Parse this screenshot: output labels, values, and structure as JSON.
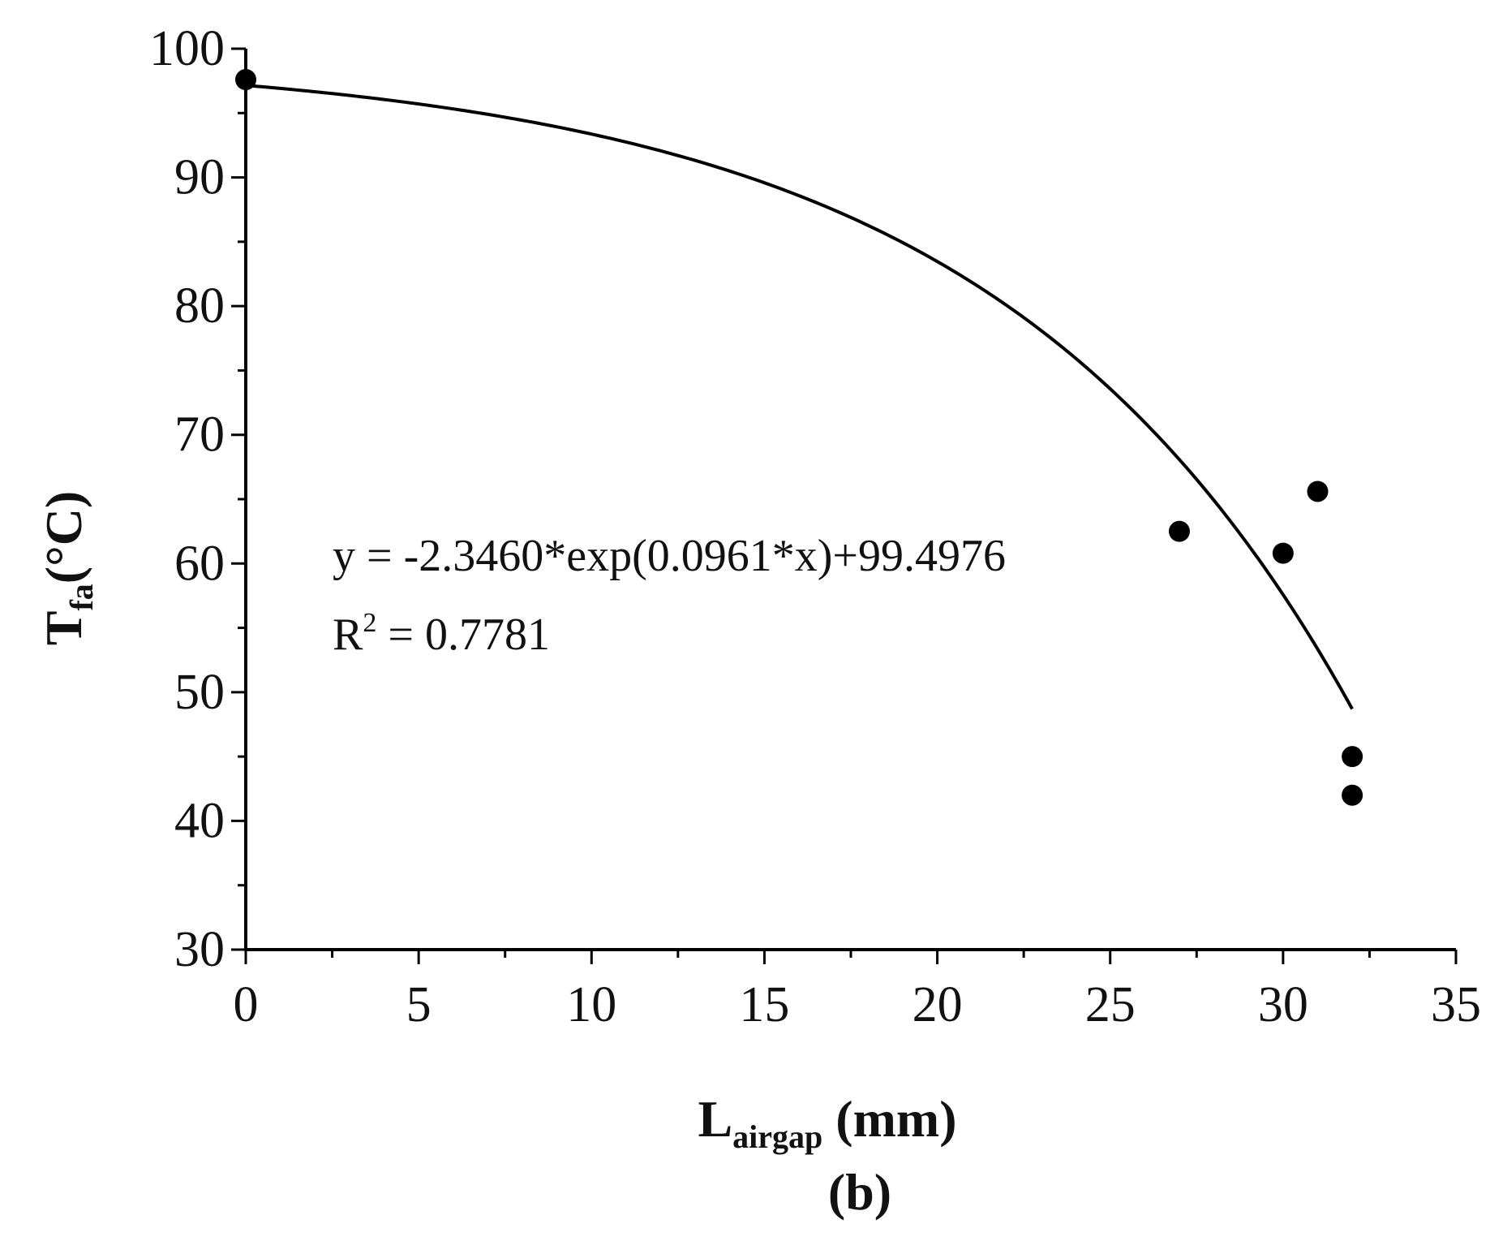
{
  "chart_data": {
    "type": "scatter",
    "xlabel": {
      "main": "L",
      "sub": "airgap",
      "tail": " (mm)"
    },
    "ylabel": {
      "main": "T",
      "sub": "fa",
      "tail": "(°C)"
    },
    "caption": "(b)",
    "xlim": [
      0,
      35
    ],
    "ylim": [
      30,
      100
    ],
    "x_ticks": [
      0,
      5,
      10,
      15,
      20,
      25,
      30,
      35
    ],
    "y_ticks": [
      30,
      40,
      50,
      60,
      70,
      80,
      90,
      100
    ],
    "grid": false,
    "points": [
      {
        "x": 0,
        "y": 97.6
      },
      {
        "x": 27,
        "y": 62.5
      },
      {
        "x": 30,
        "y": 60.8
      },
      {
        "x": 31,
        "y": 65.6
      },
      {
        "x": 32,
        "y": 45.0
      },
      {
        "x": 32,
        "y": 42.0
      }
    ],
    "fit": {
      "a": -2.346,
      "b": 0.0961,
      "c": 99.4976,
      "x_range": [
        0,
        32
      ]
    },
    "annotation": {
      "equation": "y = -2.3460*exp(0.0961*x)+99.4976",
      "r2_label": "R",
      "r2_exp": "2",
      "r2_value": " = 0.7781"
    },
    "marker_color": "#000000",
    "line_color": "#000000"
  }
}
